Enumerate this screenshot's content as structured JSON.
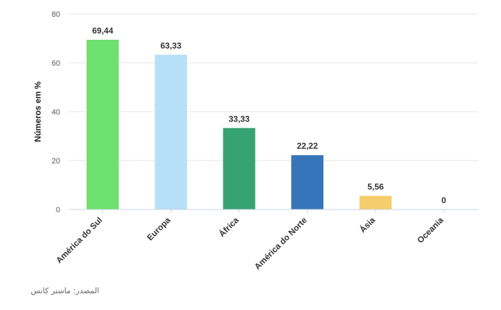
{
  "chart_data": {
    "type": "bar",
    "title": "",
    "xlabel": "",
    "ylabel": "Números em %",
    "categories": [
      "América do Sul",
      "Europa",
      "África",
      "América do Norte",
      "Ásia",
      "Oceania"
    ],
    "values": [
      69.44,
      63.33,
      33.33,
      22.22,
      5.56,
      0
    ],
    "value_labels": [
      "69,44",
      "63,33",
      "33,33",
      "22,22",
      "5,56",
      "0"
    ],
    "colors": [
      "#6ee06e",
      "#b6e0f8",
      "#37a372",
      "#3775bb",
      "#f5cd6b",
      "#9bd0f0"
    ],
    "ylim": [
      0,
      80
    ],
    "yticks": [
      0,
      20,
      40,
      60,
      80
    ],
    "grid": true,
    "legend": "none"
  },
  "source_note": "المصدر: ماستر كاتس"
}
